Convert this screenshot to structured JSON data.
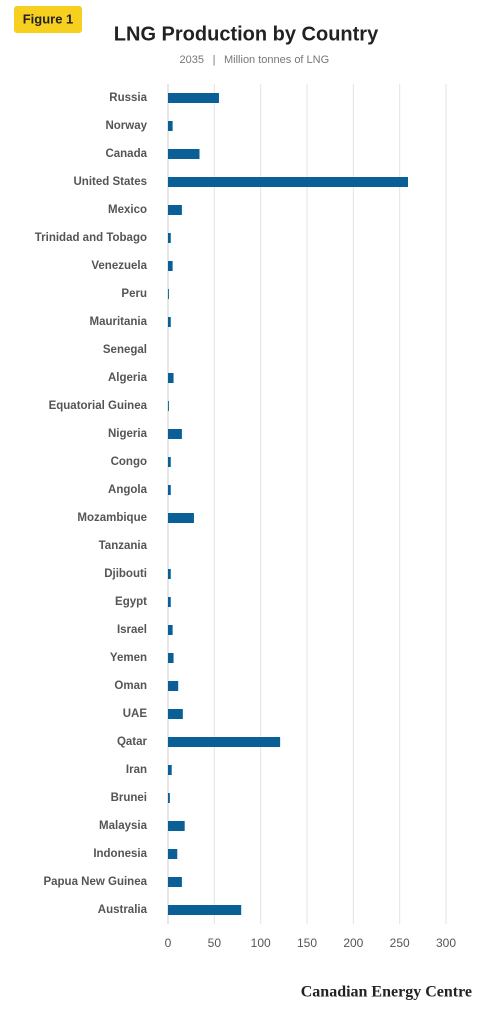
{
  "badge": "Figure 1",
  "chart_data": {
    "type": "bar",
    "orientation": "horizontal",
    "title": "LNG Production by Country",
    "subtitle": [
      "2035",
      "Million tonnes of LNG"
    ],
    "categories": [
      "Russia",
      "Norway",
      "Canada",
      "United States",
      "Mexico",
      "Trinidad and Tobago",
      "Venezuela",
      "Peru",
      "Mauritania",
      "Senegal",
      "Algeria",
      "Equatorial Guinea",
      "Nigeria",
      "Congo",
      "Angola",
      "Mozambique",
      "Tanzania",
      "Djibouti",
      "Egypt",
      "Israel",
      "Yemen",
      "Oman",
      "UAE",
      "Qatar",
      "Iran",
      "Brunei",
      "Malaysia",
      "Indonesia",
      "Papua New Guinea",
      "Australia"
    ],
    "values": [
      55,
      5,
      34,
      259,
      15,
      3,
      5,
      1,
      3,
      0,
      6,
      1,
      15,
      3,
      3,
      28,
      0,
      3,
      3,
      5,
      6,
      11,
      16,
      121,
      4,
      2,
      18,
      10,
      15,
      79
    ],
    "color": "#0a6096",
    "xlim": [
      0,
      300
    ],
    "xticks": [
      0,
      50,
      100,
      150,
      200,
      250,
      300
    ],
    "grid": true
  },
  "footer": "Canadian Energy Centre"
}
